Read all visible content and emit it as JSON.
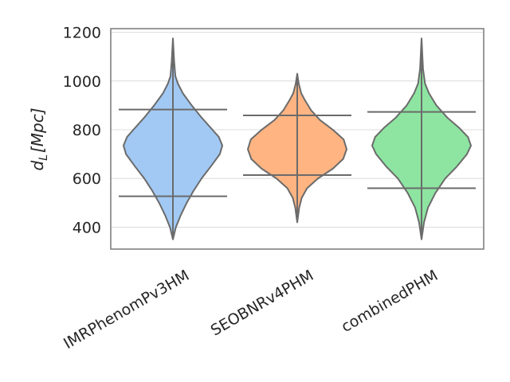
{
  "chart_data": {
    "type": "violin",
    "title": "",
    "xlabel": "",
    "ylabel_main": "d",
    "ylabel_sub": "L",
    "ylabel_unit": "[Mpc]",
    "ylim": [
      310,
      1215
    ],
    "yticks": [
      400,
      600,
      800,
      1000,
      1200
    ],
    "grid": true,
    "categories": [
      "IMRPhenomPv3HM",
      "SEOBNRv4PHM",
      "combinedPHM"
    ],
    "series": [
      {
        "category": "IMRPhenomPv3HM",
        "color": "#a1c9f4",
        "min": 350,
        "max": 1175,
        "lower_bar": 527,
        "upper_bar": 883,
        "profile": [
          [
            350,
            0.0
          ],
          [
            400,
            0.06
          ],
          [
            450,
            0.16
          ],
          [
            500,
            0.28
          ],
          [
            550,
            0.42
          ],
          [
            600,
            0.58
          ],
          [
            650,
            0.77
          ],
          [
            700,
            0.95
          ],
          [
            735,
            1.0
          ],
          [
            770,
            0.93
          ],
          [
            800,
            0.8
          ],
          [
            850,
            0.58
          ],
          [
            900,
            0.38
          ],
          [
            950,
            0.2
          ],
          [
            990,
            0.1
          ],
          [
            1020,
            0.05
          ],
          [
            1080,
            0.025
          ],
          [
            1175,
            0.0
          ]
        ]
      },
      {
        "category": "SEOBNRv4PHM",
        "color": "#ffb482",
        "min": 420,
        "max": 1030,
        "lower_bar": 614,
        "upper_bar": 859,
        "profile": [
          [
            420,
            0.0
          ],
          [
            480,
            0.04
          ],
          [
            520,
            0.09
          ],
          [
            560,
            0.2
          ],
          [
            600,
            0.42
          ],
          [
            640,
            0.72
          ],
          [
            680,
            0.93
          ],
          [
            720,
            1.0
          ],
          [
            760,
            0.94
          ],
          [
            800,
            0.72
          ],
          [
            840,
            0.46
          ],
          [
            880,
            0.28
          ],
          [
            920,
            0.16
          ],
          [
            950,
            0.08
          ],
          [
            990,
            0.03
          ],
          [
            1030,
            0.0
          ]
        ]
      },
      {
        "category": "combinedPHM",
        "color": "#8de5a1",
        "min": 350,
        "max": 1175,
        "lower_bar": 560,
        "upper_bar": 873,
        "profile": [
          [
            350,
            0.0
          ],
          [
            420,
            0.05
          ],
          [
            480,
            0.13
          ],
          [
            540,
            0.28
          ],
          [
            600,
            0.48
          ],
          [
            650,
            0.72
          ],
          [
            700,
            0.92
          ],
          [
            735,
            1.0
          ],
          [
            770,
            0.94
          ],
          [
            810,
            0.75
          ],
          [
            850,
            0.52
          ],
          [
            900,
            0.3
          ],
          [
            950,
            0.15
          ],
          [
            990,
            0.07
          ],
          [
            1050,
            0.03
          ],
          [
            1175,
            0.0
          ]
        ]
      }
    ]
  }
}
